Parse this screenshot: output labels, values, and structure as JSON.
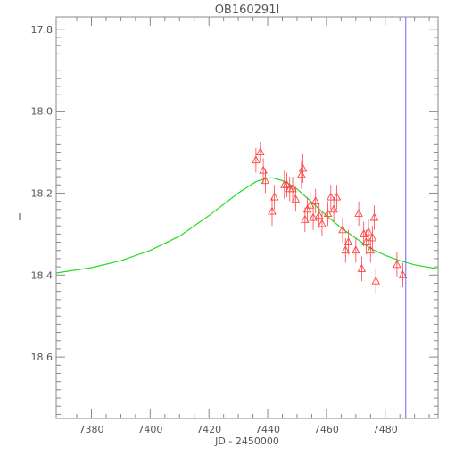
{
  "chart_data": {
    "type": "scatter",
    "title": "OB160291I",
    "xlabel": "JD - 2450000",
    "ylabel": "I",
    "xlim": [
      7368,
      7498
    ],
    "ylim": [
      18.75,
      17.77
    ],
    "y_inverted": true,
    "x_ticks": [
      7380,
      7400,
      7420,
      7440,
      7460,
      7480
    ],
    "y_ticks": [
      17.8,
      18.0,
      18.2,
      18.4,
      18.6
    ],
    "y_tick_labels": [
      "17.8",
      "18.0",
      "18.2",
      "18.4",
      "18.6"
    ],
    "vertical_line_x": 7487,
    "grid": false,
    "colors": {
      "points": "#ff4040",
      "model": "#22dd22",
      "vline": "#6666ff",
      "axes": "#888888"
    },
    "model_curve": {
      "x": [
        7368,
        7380,
        7390,
        7400,
        7410,
        7420,
        7430,
        7436,
        7440,
        7442,
        7446,
        7450,
        7455,
        7460,
        7465,
        7470,
        7475,
        7480,
        7485,
        7490,
        7498
      ],
      "y": [
        18.395,
        18.382,
        18.365,
        18.34,
        18.305,
        18.255,
        18.2,
        18.172,
        18.163,
        18.163,
        18.172,
        18.19,
        18.222,
        18.255,
        18.285,
        18.31,
        18.335,
        18.352,
        18.365,
        18.375,
        18.385
      ]
    },
    "points": [
      {
        "x": 7436,
        "y": 18.12,
        "err": 0.03
      },
      {
        "x": 7437.5,
        "y": 18.1,
        "err": 0.025
      },
      {
        "x": 7438.5,
        "y": 18.145,
        "err": 0.03
      },
      {
        "x": 7439.2,
        "y": 18.17,
        "err": 0.03
      },
      {
        "x": 7441.5,
        "y": 18.245,
        "err": 0.035
      },
      {
        "x": 7442.3,
        "y": 18.21,
        "err": 0.03
      },
      {
        "x": 7445.7,
        "y": 18.18,
        "err": 0.035
      },
      {
        "x": 7446.5,
        "y": 18.18,
        "err": 0.03
      },
      {
        "x": 7447.5,
        "y": 18.19,
        "err": 0.03
      },
      {
        "x": 7448.5,
        "y": 18.19,
        "err": 0.03
      },
      {
        "x": 7449.5,
        "y": 18.215,
        "err": 0.03
      },
      {
        "x": 7451.5,
        "y": 18.155,
        "err": 0.035
      },
      {
        "x": 7452.0,
        "y": 18.14,
        "err": 0.035
      },
      {
        "x": 7452.7,
        "y": 18.265,
        "err": 0.03
      },
      {
        "x": 7453.5,
        "y": 18.24,
        "err": 0.03
      },
      {
        "x": 7454.5,
        "y": 18.23,
        "err": 0.03
      },
      {
        "x": 7455.5,
        "y": 18.26,
        "err": 0.03
      },
      {
        "x": 7456.3,
        "y": 18.22,
        "err": 0.03
      },
      {
        "x": 7457.5,
        "y": 18.255,
        "err": 0.03
      },
      {
        "x": 7458.5,
        "y": 18.275,
        "err": 0.03
      },
      {
        "x": 7460.5,
        "y": 18.25,
        "err": 0.03
      },
      {
        "x": 7461.5,
        "y": 18.21,
        "err": 0.03
      },
      {
        "x": 7462.5,
        "y": 18.24,
        "err": 0.03
      },
      {
        "x": 7463.5,
        "y": 18.21,
        "err": 0.03
      },
      {
        "x": 7465.5,
        "y": 18.29,
        "err": 0.03
      },
      {
        "x": 7466.5,
        "y": 18.34,
        "err": 0.03
      },
      {
        "x": 7467.5,
        "y": 18.32,
        "err": 0.03
      },
      {
        "x": 7470.0,
        "y": 18.34,
        "err": 0.03
      },
      {
        "x": 7471.0,
        "y": 18.25,
        "err": 0.03
      },
      {
        "x": 7472.0,
        "y": 18.385,
        "err": 0.03
      },
      {
        "x": 7472.7,
        "y": 18.3,
        "err": 0.03
      },
      {
        "x": 7473.5,
        "y": 18.32,
        "err": 0.03
      },
      {
        "x": 7474.3,
        "y": 18.295,
        "err": 0.03
      },
      {
        "x": 7475.0,
        "y": 18.34,
        "err": 0.03
      },
      {
        "x": 7475.7,
        "y": 18.31,
        "err": 0.03
      },
      {
        "x": 7476.3,
        "y": 18.26,
        "err": 0.03
      },
      {
        "x": 7476.8,
        "y": 18.415,
        "err": 0.03
      },
      {
        "x": 7484.0,
        "y": 18.375,
        "err": 0.03
      },
      {
        "x": 7486.0,
        "y": 18.4,
        "err": 0.03
      }
    ]
  }
}
